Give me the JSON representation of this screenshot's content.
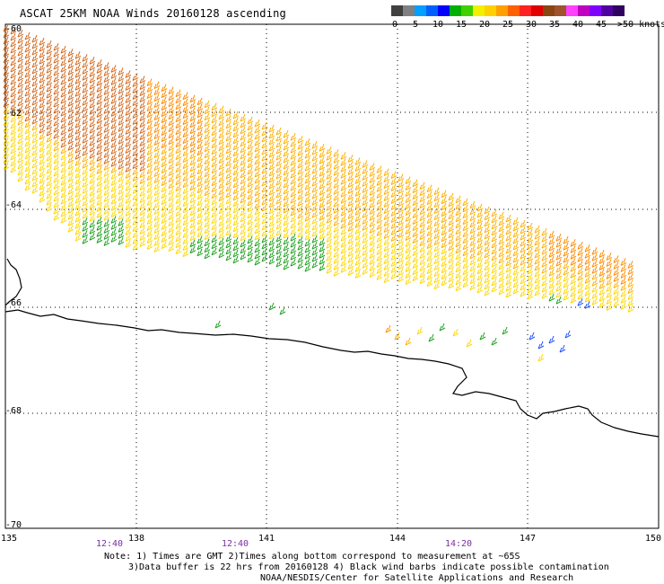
{
  "title": "ASCAT 25KM NOAA Winds 20160128 ascending",
  "legend": {
    "colors": [
      "#404040",
      "#808080",
      "#00a0ff",
      "#0060ff",
      "#0000ff",
      "#00b000",
      "#40d000",
      "#f0f000",
      "#ffd000",
      "#ffa000",
      "#ff6000",
      "#ff2020",
      "#e00000",
      "#8b4513",
      "#a0522d",
      "#ff40ff",
      "#c000c0",
      "#8000ff",
      "#5000a0",
      "#300060"
    ],
    "tick_labels": [
      "0",
      "5",
      "10",
      "15",
      "20",
      "25",
      "30",
      "35",
      "40",
      "45"
    ],
    "end_label": ">50 knots"
  },
  "axes": {
    "lat_labels": [
      "-60",
      "-62",
      "-64",
      "-66",
      "-68",
      "-70"
    ],
    "lon_labels": [
      "135",
      "138",
      "141",
      "144",
      "147",
      "150"
    ]
  },
  "times": [
    "12:40",
    "12:40",
    "14:20"
  ],
  "notes": {
    "line1": "Note: 1) Times are GMT 2)Times along bottom correspond to measurement at ~65S",
    "line2": "3)Data buffer is 22 hrs from 20160128 4) Black wind barbs indicate possible contamination",
    "line3": "NOAA/NESDIS/Center for Satellite Applications and Research"
  },
  "wind_colors": {
    "orange_dark": "#d2691e",
    "orange": "#ff8c00",
    "amber": "#ffb000",
    "yellow": "#ffd700",
    "green": "#1ea01e",
    "blue": "#1e50ff",
    "coast": "#000000"
  }
}
